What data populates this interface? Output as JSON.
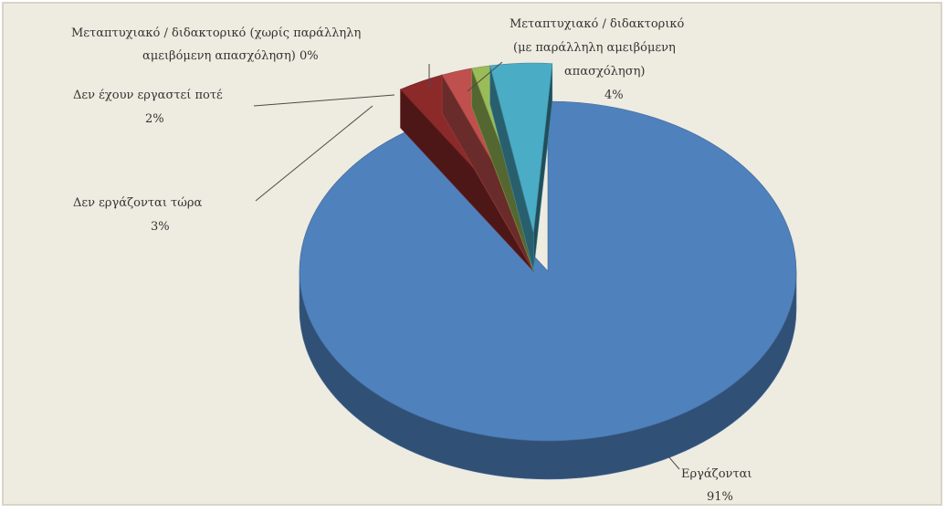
{
  "chart_data": {
    "type": "pie",
    "title": "",
    "style": "3d-exploded",
    "slices": [
      {
        "label": "Εργάζονται",
        "value": 91,
        "value_label": "91%",
        "color": "#4f81bd"
      },
      {
        "label": "Δεν εργάζονται τώρα",
        "value": 3,
        "value_label": "3%",
        "color": "#8c2a2a"
      },
      {
        "label": "Δεν έχουν εργαστεί ποτέ",
        "value": 2,
        "value_label": "2%",
        "color": "#c0504d"
      },
      {
        "label": "Μεταπτυχιακό / διδακτορικό (χωρίς παράλληλη αμειβόμενη απασχόληση)",
        "value": 0,
        "value_label": "0%",
        "color": "#9bbb59"
      },
      {
        "label": "Μεταπτυχιακό / διδακτορικό (με παράλληλη αμειβόμενη απασχόληση)",
        "value": 4,
        "value_label": "4%",
        "color": "#4bacc6"
      }
    ]
  },
  "labels": {
    "working": {
      "line1": "Εργάζονται",
      "pct": "91%"
    },
    "not_working_now": {
      "line1": "Δεν εργάζονται τώρα",
      "pct": "3%"
    },
    "never_worked": {
      "line1": "Δεν έχουν εργαστεί ποτέ",
      "pct": "2%"
    },
    "postgrad_no_job": {
      "line1": "Μεταπτυχιακό / διδακτορικό (χωρίς παράλληλη",
      "line2": "αμειβόμενη απασχόληση) 0%"
    },
    "postgrad_with_job": {
      "line1": "Μεταπτυχιακό / διδακτορικό",
      "line2": "(με παράλληλη αμειβόμενη",
      "line3": "απασχόληση)",
      "pct": "4%"
    }
  },
  "colors": {
    "background": "#eeebe0",
    "leader_line": "#4a4a4a"
  }
}
